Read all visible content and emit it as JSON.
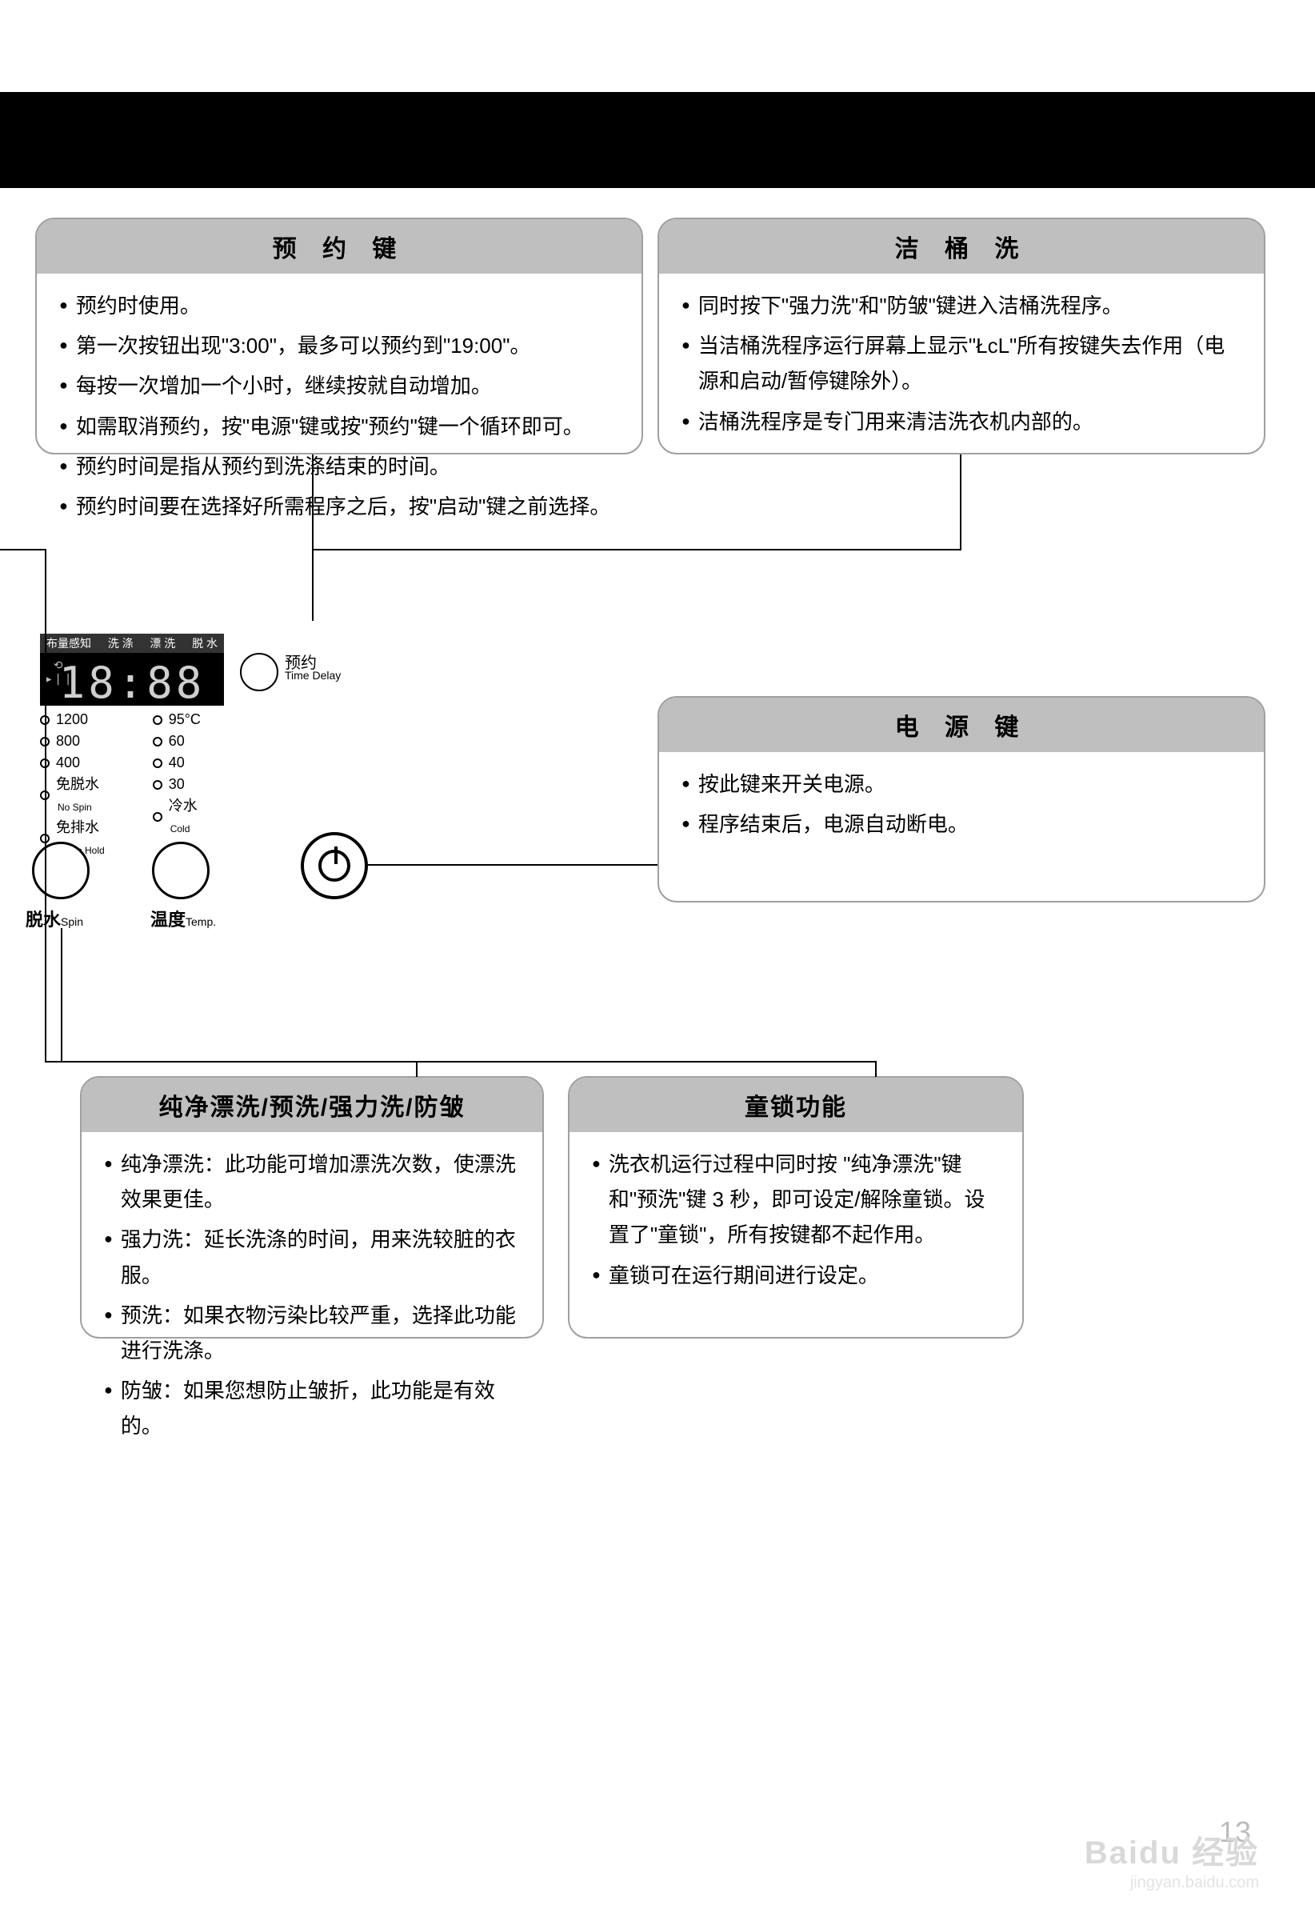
{
  "boxes": {
    "delay": {
      "title": "预 约 键",
      "items": [
        "预约时使用。",
        "第一次按钮出现\"3:00\"，最多可以预约到\"19:00\"。",
        "每按一次增加一个小时，继续按就自动增加。",
        "如需取消预约，按\"电源\"键或按\"预约\"键一个循环即可。",
        "预约时间是指从预约到洗涤结束的时间。",
        "预约时间要在选择好所需程序之后，按\"启动\"键之前选择。"
      ]
    },
    "tub_clean": {
      "title": "洁 桶 洗",
      "items": [
        "同时按下\"强力洗\"和\"防皱\"键进入洁桶洗程序。",
        "当洁桶洗程序运行屏幕上显示\"ŁcL\"所有按键失去作用（电源和启动/暂停键除外）。",
        "洁桶洗程序是专门用来清洁洗衣机内部的。"
      ]
    },
    "power": {
      "title": "电 源 键",
      "items": [
        "按此键来开关电源。",
        "程序结束后，电源自动断电。"
      ]
    },
    "options": {
      "title": "纯净漂洗/预洗/强力洗/防皱",
      "items": [
        "纯净漂洗：此功能可增加漂洗次数，使漂洗效果更佳。",
        "强力洗：延长洗涤的时间，用来洗较脏的衣服。",
        "预洗：如果衣物污染比较严重，选择此功能进行洗涤。",
        "防皱：如果您想防止皱折，此功能是有效的。"
      ]
    },
    "child_lock": {
      "title": "童锁功能",
      "items": [
        "洗衣机运行过程中同时按 \"纯净漂洗\"键和\"预洗\"键 3 秒，即可设定/解除童锁。设置了\"童锁\"，所有按键都不起作用。",
        "童锁可在运行期间进行设定。"
      ]
    }
  },
  "panel": {
    "top_labels": [
      "布量感知",
      "洗 涤",
      "漂 洗",
      "脱 水"
    ],
    "lcd": "18:88",
    "delay_btn": "预约",
    "delay_btn_en": "Time Delay",
    "spin_opts": [
      {
        "v": "1200"
      },
      {
        "v": "800"
      },
      {
        "v": "400"
      },
      {
        "v": "免脱水",
        "en": "No Spin"
      },
      {
        "v": "免排水",
        "en": "Rinse Hold"
      }
    ],
    "temp_opts": [
      {
        "v": "95°C"
      },
      {
        "v": "60"
      },
      {
        "v": "40"
      },
      {
        "v": "30"
      },
      {
        "v": "冷水",
        "en": "Cold"
      }
    ],
    "dial_spin": "脱水",
    "dial_spin_en": "Spin",
    "dial_temp": "温度",
    "dial_temp_en": "Temp."
  },
  "page_number": "13",
  "watermark": "Baidu 经验",
  "watermark_url": "jingyan.baidu.com",
  "colors": {
    "title_bg": "#bfbfbf",
    "border": "#a0a0a0",
    "lcd_bg": "#000000",
    "lcd_fg": "#cfcfcf"
  }
}
